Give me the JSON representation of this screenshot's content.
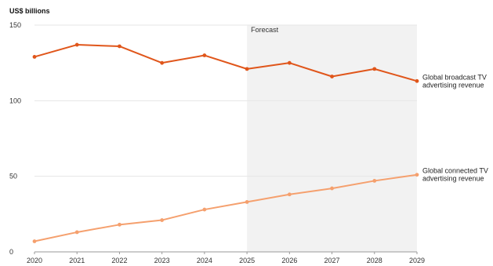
{
  "chart_data": {
    "type": "line",
    "ylabel": "US$ billions",
    "x": [
      2020,
      2021,
      2022,
      2023,
      2024,
      2025,
      2026,
      2027,
      2028,
      2029
    ],
    "ylim": [
      0,
      150
    ],
    "yticks": [
      0,
      50,
      100,
      150
    ],
    "grid": true,
    "forecast_region": {
      "label": "Forecast",
      "from": 2025,
      "to": 2029
    },
    "series": [
      {
        "name": "Global broadcast TV advertising revenue",
        "label_lines": [
          "Global broadcast TV",
          "advertising revenue"
        ],
        "color": "#e0561b",
        "values": [
          129,
          137,
          136,
          125,
          130,
          121,
          125,
          116,
          121,
          113
        ]
      },
      {
        "name": "Global connected TV advertising revenue",
        "label_lines": [
          "Global connected TV",
          "advertising revenue"
        ],
        "color": "#f5a06e",
        "values": [
          7,
          13,
          18,
          21,
          28,
          33,
          38,
          42,
          47,
          51
        ]
      }
    ]
  }
}
